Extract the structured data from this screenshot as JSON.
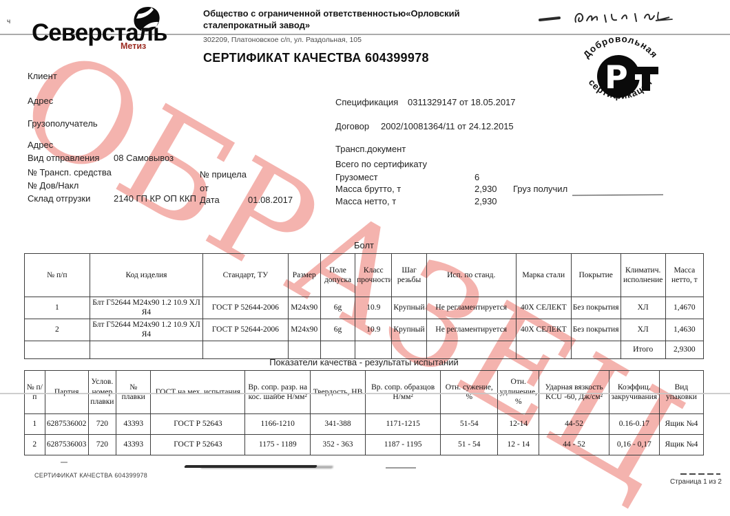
{
  "watermark": {
    "text": "ОБРАЗЕЦ",
    "color": "#f4b3ae"
  },
  "logo": {
    "brand": "Северсталь",
    "division": "Метиз",
    "division_color": "#9c2d23"
  },
  "margin_mark": "ч",
  "company": {
    "name_line1": "Общество с ограниченной ответственностью«Орловский",
    "name_line2": "сталепрокатный завод»",
    "address": "302209, Платоновское с/п, ул. Раздольная, 105",
    "cert_title": "СЕРТИФИКАТ КАЧЕСТВА 604399978"
  },
  "stamp": {
    "arc_top": "Добровольная",
    "arc_bottom": "сертификация",
    "mark_letters": "РСТ"
  },
  "fields": {
    "client_label": "Клиент",
    "address1_label": "Адрес",
    "consignee_label": "Грузополучатель",
    "address2_label": "Адрес",
    "shipment_type_label": "Вид отправления",
    "shipment_type_value": "08 Самовывоз",
    "transport_no_label": "№ Трансп. средства",
    "trailer_no_label": "№ прицела",
    "dov_nakl_label": "№ Дов/Накл",
    "ot_label": "от",
    "warehouse_label": "Склад отгрузки",
    "warehouse_value": "2140 ГП КР ОП ККП",
    "date_label": "Дата",
    "date_value": "01.08.2017",
    "spec_label": "Спецификация",
    "spec_value": "0311329147 от 18.05.2017",
    "contract_label": "Договор",
    "contract_value": "2002/10081364/11 от 24.12.2015",
    "transport_doc_label": "Трансп.документ",
    "total_cert_label": "Всего по сертификату",
    "cargo_places_label": "Грузомест",
    "cargo_places_value": "6",
    "gross_label": "Масса брутто, т",
    "gross_value": "2,930",
    "net_label": "Масса нетто, т",
    "net_value": "2,930",
    "cargo_received_label": "Груз получил"
  },
  "table1": {
    "caption": "Болт",
    "headers": [
      "№ п/п",
      "Код изделия",
      "Стандарт, ТУ",
      "Размер",
      "Поле допуска",
      "Класс прочности",
      "Шаг резьбы",
      "Исп. по станд.",
      "Марка стали",
      "Покрытие",
      "Климатич. исполнение",
      "Масса нетто, т"
    ],
    "rows": [
      [
        "1",
        "Блт Г52644 М24х90 1.2 10.9 ХЛ Я4",
        "ГОСТ Р 52644-2006",
        "М24х90",
        "6g",
        "10.9",
        "Крупный",
        "Не регламентируется",
        "40Х СЕЛЕКТ",
        "Без покрытия",
        "ХЛ",
        "1,4670"
      ],
      [
        "2",
        "Блт Г52644 М24х90 1.2 10.9 ХЛ Я4",
        "ГОСТ Р 52644-2006",
        "М24х90",
        "6g",
        "10.9",
        "Крупный",
        "Не регламентируется",
        "40Х СЕЛЕКТ",
        "Без покрытия",
        "ХЛ",
        "1,4630"
      ],
      [
        "",
        "",
        "",
        "",
        "",
        "",
        "",
        "",
        "",
        "",
        "Итого",
        "2,9300"
      ]
    ]
  },
  "table2": {
    "caption": "Показатели качества - результаты испытаний",
    "headers": [
      "№ п/п",
      "Партия",
      "Услов. номер плавки",
      "№ плавки",
      "ГОСТ на мех. испытания",
      "Вр. сопр. разр. на кос. шайбе Н/мм²",
      "Твердость, НВ",
      "Вр. сопр. образцов Н/мм²",
      "Отн. сужение, %",
      "Отн. удлинение, %",
      "Ударная вязкость KCU -60, Дж/см²",
      "Коэффиц. закручивания",
      "Вид упаковки"
    ],
    "rows": [
      [
        "1",
        "6287536002",
        "720",
        "43393",
        "ГОСТ Р 52643",
        "1166-1210",
        "341-388",
        "1171-1215",
        "51-54",
        "12-14",
        "44-52",
        "0.16-0.17",
        "Ящик №4"
      ],
      [
        "2",
        "6287536003",
        "720",
        "43393",
        "ГОСТ Р 52643",
        "1175 - 1189",
        "352 - 363",
        "1187 - 1195",
        "51 - 54",
        "12 - 14",
        "44 - 52",
        "0,16 - 0,17",
        "Ящик №4"
      ]
    ]
  },
  "footer": {
    "doc_ref": "СЕРТИФИКАТ КАЧЕСТВА 604399978",
    "page_info": "Страница 1 из 2"
  }
}
